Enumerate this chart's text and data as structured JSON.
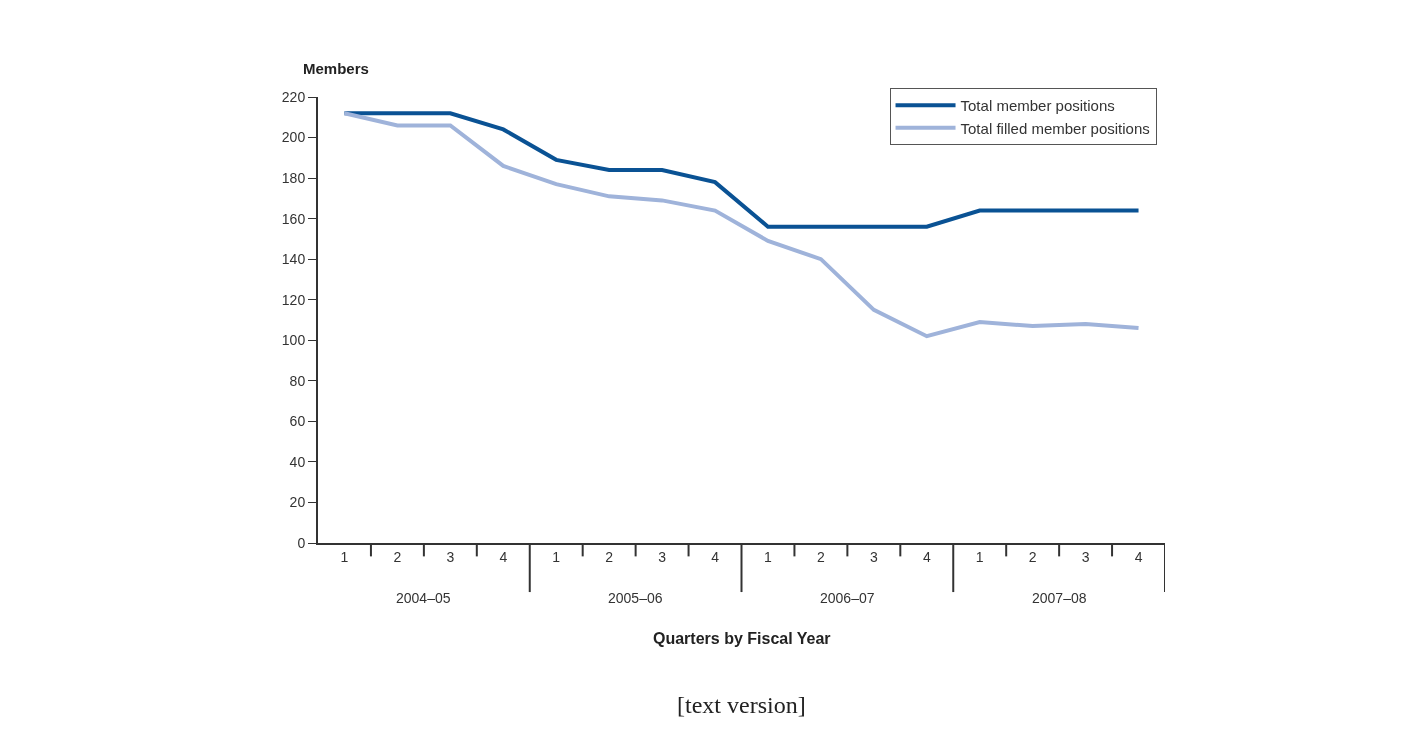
{
  "chart_data": {
    "type": "line",
    "ylabel": "Members",
    "xlabel": "Quarters by Fiscal Year",
    "categories": [
      "1",
      "2",
      "3",
      "4",
      "1",
      "2",
      "3",
      "4",
      "1",
      "2",
      "3",
      "4",
      "1",
      "2",
      "3",
      "4"
    ],
    "series": [
      {
        "name": "Total member positions",
        "color": "#0a5294",
        "values": [
          212,
          212,
          212,
          204,
          189,
          184,
          184,
          178,
          156,
          156,
          156,
          156,
          164,
          164,
          164,
          164
        ]
      },
      {
        "name": "Total filled member positions",
        "color": "#9fb3da",
        "values": [
          212,
          206,
          206,
          186,
          177,
          171,
          169,
          164,
          149,
          140,
          115,
          102,
          109,
          107,
          108,
          106
        ]
      }
    ],
    "ylim": [
      0,
      220
    ],
    "yticks": [
      0,
      20,
      40,
      60,
      80,
      100,
      120,
      140,
      160,
      180,
      200,
      220
    ],
    "annotations": [
      "2004–05",
      "2005–06",
      "2006–07",
      "2007–08",
      "[text version]"
    ],
    "legend": "top right",
    "marker": "none",
    "line_style": "solid"
  }
}
